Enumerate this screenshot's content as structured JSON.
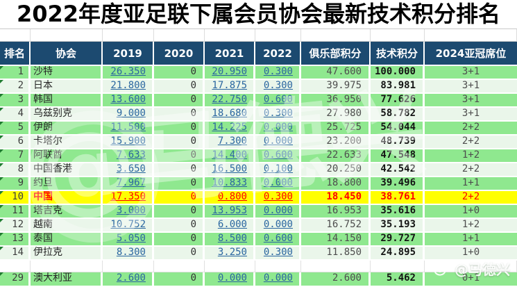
{
  "title": "2022年度亚足联下属会员协会最新技术积分排名",
  "colors": {
    "header_bg": "#1C4A70",
    "row_green": "#8FE88F",
    "row_pale": "#EAF6EA",
    "highlight_bg": "#FFFF00",
    "highlight_text": "#FF0000",
    "link_blue": "#2A66A0"
  },
  "table": {
    "headers": [
      "排名",
      "协会",
      "2019",
      "2020",
      "2021",
      "2022",
      "俱乐部积分",
      "技术积分",
      "2024亚冠席位"
    ],
    "rows": [
      {
        "rank": "1",
        "assoc": "沙特",
        "y2019": "26.350",
        "y2020": "0",
        "y2021": "20.950",
        "y2022": "0.300",
        "club": "47.600",
        "tech": "100.000",
        "slots": "3+1",
        "variant": "green"
      },
      {
        "rank": "2",
        "assoc": "日本",
        "y2019": "21.800",
        "y2020": "0",
        "y2021": "17.875",
        "y2022": "0.300",
        "club": "39.975",
        "tech": "83.981",
        "slots": "3+1",
        "variant": "pale"
      },
      {
        "rank": "3",
        "assoc": "韩国",
        "y2019": "13.600",
        "y2020": "0",
        "y2021": "22.750",
        "y2022": "0.600",
        "club": "36.950",
        "tech": "77.626",
        "slots": "3+1",
        "variant": "green"
      },
      {
        "rank": "4",
        "assoc": "乌兹别克",
        "y2019": "9.000",
        "y2020": "0",
        "y2021": "18.680",
        "y2022": "0.300",
        "club": "27.980",
        "tech": "58.782",
        "slots": "3+1",
        "variant": "pale"
      },
      {
        "rank": "5",
        "assoc": "伊朗",
        "y2019": "11.500",
        "y2020": "0",
        "y2021": "14.225",
        "y2022": "0.000",
        "club": "25.725",
        "tech": "54.044",
        "slots": "2+2",
        "variant": "green"
      },
      {
        "rank": "6",
        "assoc": "卡塔尔",
        "y2019": "15.900",
        "y2020": "0",
        "y2021": "7.300",
        "y2022": "0.000",
        "club": "23.200",
        "tech": "48.739",
        "slots": "2+2",
        "variant": "pale"
      },
      {
        "rank": "7",
        "assoc": "阿联酋",
        "y2019": "7.633",
        "y2020": "0",
        "y2021": "14.400",
        "y2022": "0.600",
        "club": "22.633",
        "tech": "47.548",
        "slots": "1+2",
        "variant": "green"
      },
      {
        "rank": "8",
        "assoc": "中国香港",
        "y2019": "3.650",
        "y2020": "0",
        "y2021": "16.500",
        "y2022": "0.100",
        "club": "20.250",
        "tech": "42.542",
        "slots": "2+2",
        "variant": "pale"
      },
      {
        "rank": "9",
        "assoc": "约旦",
        "y2019": "7.967",
        "y2020": "0",
        "y2021": "10.833",
        "y2022": "0.000",
        "club": "18.800",
        "tech": "39.496",
        "slots": "1+1",
        "variant": "green"
      },
      {
        "rank": "10",
        "assoc": "中国",
        "y2019": "17.350",
        "y2020": "0",
        "y2021": "0.800",
        "y2022": "0.300",
        "club": "18.450",
        "tech": "38.761",
        "slots": "2+2",
        "variant": "highlight"
      },
      {
        "rank": "11",
        "assoc": "塔吉克",
        "y2019": "3.000",
        "y2020": "0",
        "y2021": "13.953",
        "y2022": "0.000",
        "club": "16.953",
        "tech": "35.616",
        "slots": "1+0",
        "variant": "green"
      },
      {
        "rank": "12",
        "assoc": "越南",
        "y2019": "10.752",
        "y2020": "0",
        "y2021": "6.000",
        "y2022": "0.000",
        "club": "16.752",
        "tech": "35.193",
        "slots": "1+2",
        "variant": "pale"
      },
      {
        "rank": "13",
        "assoc": "泰国",
        "y2019": "5.050",
        "y2020": "0",
        "y2021": "8.500",
        "y2022": "0.600",
        "club": "14.150",
        "tech": "29.727",
        "slots": "1+1",
        "variant": "green"
      },
      {
        "rank": "14",
        "assoc": "伊拉克",
        "y2019": "8.300",
        "y2020": "0",
        "y2021": "3.250",
        "y2022": "0.300",
        "club": "11.850",
        "tech": "24.895",
        "slots": "1+0",
        "variant": "pale"
      },
      {
        "rank": "",
        "assoc": "",
        "y2019": "",
        "y2020": "",
        "y2021": "",
        "y2022": "",
        "club": "",
        "tech": "",
        "slots": "",
        "variant": "blank"
      },
      {
        "rank": "29",
        "assoc": "澳大利亚",
        "y2019": "2.600",
        "y2020": "0",
        "y2021": "0.000",
        "y2022": "0.000",
        "club": "2.600",
        "tech": "5.462",
        "slots": "0+1",
        "variant": "green"
      }
    ]
  },
  "watermark": {
    "center_text": "@马德兴",
    "corner_text": "@马德兴"
  },
  "chart_data": {
    "type": "table",
    "title": "2022年度亚足联下属会员协会最新技术积分排名",
    "columns": [
      "排名",
      "协会",
      "2019",
      "2020",
      "2021",
      "2022",
      "俱乐部积分",
      "技术积分",
      "2024亚冠席位"
    ],
    "rows": [
      [
        "1",
        "沙特",
        "26.350",
        "0",
        "20.950",
        "0.300",
        "47.600",
        "100.000",
        "3+1"
      ],
      [
        "2",
        "日本",
        "21.800",
        "0",
        "17.875",
        "0.300",
        "39.975",
        "83.981",
        "3+1"
      ],
      [
        "3",
        "韩国",
        "13.600",
        "0",
        "22.750",
        "0.600",
        "36.950",
        "77.626",
        "3+1"
      ],
      [
        "4",
        "乌兹别克",
        "9.000",
        "0",
        "18.680",
        "0.300",
        "27.980",
        "58.782",
        "3+1"
      ],
      [
        "5",
        "伊朗",
        "11.500",
        "0",
        "14.225",
        "0.000",
        "25.725",
        "54.044",
        "2+2"
      ],
      [
        "6",
        "卡塔尔",
        "15.900",
        "0",
        "7.300",
        "0.000",
        "23.200",
        "48.739",
        "2+2"
      ],
      [
        "7",
        "阿联酋",
        "7.633",
        "0",
        "14.400",
        "0.600",
        "22.633",
        "47.548",
        "1+2"
      ],
      [
        "8",
        "中国香港",
        "3.650",
        "0",
        "16.500",
        "0.100",
        "20.250",
        "42.542",
        "2+2"
      ],
      [
        "9",
        "约旦",
        "7.967",
        "0",
        "10.833",
        "0.000",
        "18.800",
        "39.496",
        "1+1"
      ],
      [
        "10",
        "中国",
        "17.350",
        "0",
        "0.800",
        "0.300",
        "18.450",
        "38.761",
        "2+2"
      ],
      [
        "11",
        "塔吉克",
        "3.000",
        "0",
        "13.953",
        "0.000",
        "16.953",
        "35.616",
        "1+0"
      ],
      [
        "12",
        "越南",
        "10.752",
        "0",
        "6.000",
        "0.000",
        "16.752",
        "35.193",
        "1+2"
      ],
      [
        "13",
        "泰国",
        "5.050",
        "0",
        "8.500",
        "0.600",
        "14.150",
        "29.727",
        "1+1"
      ],
      [
        "14",
        "伊拉克",
        "8.300",
        "0",
        "3.250",
        "0.300",
        "11.850",
        "24.895",
        "1+0"
      ],
      [
        "29",
        "澳大利亚",
        "2.600",
        "0",
        "0.000",
        "0.000",
        "2.600",
        "5.462",
        "0+1"
      ]
    ],
    "highlighted_row_rank": "10",
    "layout": "alternating green rows, rank 10 highlighted yellow with red text"
  }
}
